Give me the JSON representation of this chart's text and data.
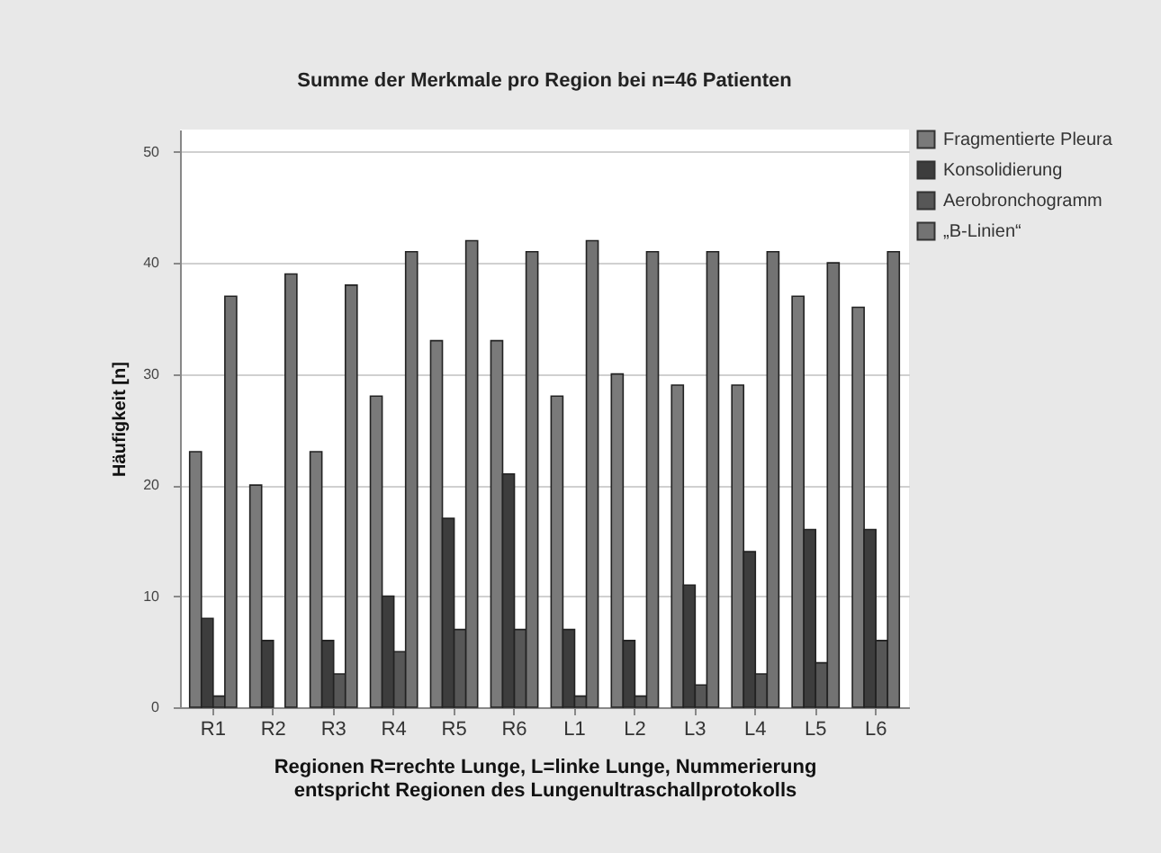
{
  "chart_data": {
    "type": "bar",
    "title": "Summe der Merkmale pro Region bei n=46 Patienten",
    "xlabel": "Regionen R=rechte Lunge, L=linke Lunge, Nummerierung\nentspricht Regionen des Lungenultraschallprotokolls",
    "ylabel": "Häufigkeit [n]",
    "categories": [
      "R1",
      "R2",
      "R3",
      "R4",
      "R5",
      "R6",
      "L1",
      "L2",
      "L3",
      "L4",
      "L5",
      "L6"
    ],
    "series": [
      {
        "name": "Fragmentierte Pleura",
        "color": "#7a7a7a",
        "values": [
          23,
          20,
          23,
          28,
          33,
          33,
          28,
          30,
          29,
          29,
          37,
          36
        ]
      },
      {
        "name": "Konsolidierung",
        "color": "#3d3d3d",
        "values": [
          8,
          6,
          6,
          10,
          17,
          21,
          7,
          6,
          11,
          14,
          16,
          16
        ]
      },
      {
        "name": "Aerobronchogramm",
        "color": "#575757",
        "values": [
          1,
          0,
          3,
          5,
          7,
          7,
          1,
          1,
          2,
          3,
          4,
          6
        ]
      },
      {
        "name": "„B-Linien“",
        "color": "#737373",
        "values": [
          37,
          39,
          38,
          41,
          42,
          41,
          42,
          41,
          41,
          41,
          40,
          41
        ]
      }
    ],
    "ylim": [
      0,
      52
    ],
    "yticks": [
      0,
      10,
      20,
      30,
      40,
      50
    ],
    "grid": "y",
    "legend": "top right"
  }
}
